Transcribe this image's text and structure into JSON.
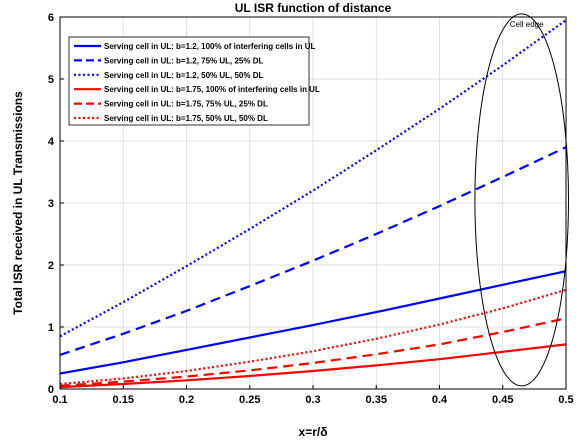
{
  "chart_data": {
    "type": "line",
    "title": "UL ISR function of distance",
    "xlabel": "x=r/δ",
    "ylabel": "Total ISR received in UL Transmissions",
    "xlim": [
      0.1,
      0.5
    ],
    "ylim": [
      0,
      6
    ],
    "xticks": [
      "0.1",
      "0.15",
      "0.2",
      "0.25",
      "0.3",
      "0.35",
      "0.4",
      "0.45",
      "0.5"
    ],
    "yticks": [
      "0",
      "1",
      "2",
      "3",
      "4",
      "5",
      "6"
    ],
    "grid": true,
    "legend_position": "top-left",
    "annotation": {
      "text": "Cell edge",
      "shape": "ellipse",
      "center_x": 0.465,
      "center_y": 3.05,
      "radius_x": 0.037,
      "radius_y": 3.0
    },
    "series": [
      {
        "name": "Serving cell in UL: b=1.2, 100% of interfering cells in UL",
        "color": "#0000ff",
        "style": "solid",
        "x": [
          0.1,
          0.15,
          0.2,
          0.25,
          0.3,
          0.35,
          0.4,
          0.45,
          0.5
        ],
        "y": [
          0.25,
          0.43,
          0.63,
          0.83,
          1.03,
          1.24,
          1.46,
          1.68,
          1.9
        ]
      },
      {
        "name": "Serving cell in UL: b=1.2, 75% UL, 25% DL",
        "color": "#0000ff",
        "style": "dashed",
        "x": [
          0.1,
          0.15,
          0.2,
          0.25,
          0.3,
          0.35,
          0.4,
          0.45,
          0.5
        ],
        "y": [
          0.55,
          0.89,
          1.26,
          1.66,
          2.07,
          2.5,
          2.95,
          3.42,
          3.9
        ]
      },
      {
        "name": "Serving cell in UL: b=1.2, 50% UL, 50% DL",
        "color": "#0000ff",
        "style": "dotted",
        "x": [
          0.1,
          0.15,
          0.2,
          0.25,
          0.3,
          0.35,
          0.4,
          0.45,
          0.5
        ],
        "y": [
          0.85,
          1.4,
          1.98,
          2.58,
          3.2,
          3.85,
          4.52,
          5.22,
          5.95
        ]
      },
      {
        "name": "Serving cell in UL: b=1.75, 100% of interfering cells in UL",
        "color": "#ff0000",
        "style": "solid",
        "x": [
          0.1,
          0.15,
          0.2,
          0.25,
          0.3,
          0.35,
          0.4,
          0.45,
          0.5
        ],
        "y": [
          0.03,
          0.08,
          0.14,
          0.21,
          0.29,
          0.38,
          0.48,
          0.6,
          0.72
        ]
      },
      {
        "name": "Serving cell in UL: b=1.75, 75% UL, 25% DL",
        "color": "#ff0000",
        "style": "dashed",
        "x": [
          0.1,
          0.15,
          0.2,
          0.25,
          0.3,
          0.35,
          0.4,
          0.45,
          0.5
        ],
        "y": [
          0.05,
          0.12,
          0.2,
          0.3,
          0.42,
          0.56,
          0.72,
          0.92,
          1.14
        ]
      },
      {
        "name": "Serving cell in UL: b=1.75, 50% UL, 50% DL",
        "color": "#ff0000",
        "style": "dotted",
        "x": [
          0.1,
          0.15,
          0.2,
          0.25,
          0.3,
          0.35,
          0.4,
          0.45,
          0.5
        ],
        "y": [
          0.08,
          0.17,
          0.29,
          0.44,
          0.61,
          0.81,
          1.04,
          1.3,
          1.6
        ]
      }
    ]
  }
}
